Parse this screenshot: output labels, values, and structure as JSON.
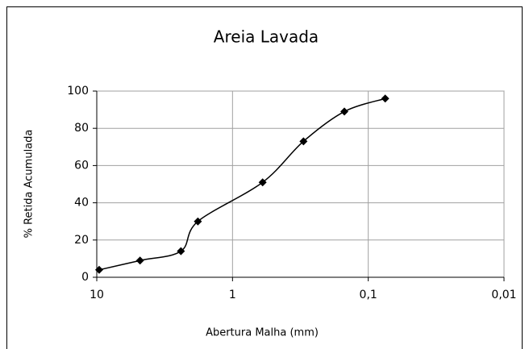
{
  "chart_data": {
    "type": "line",
    "title": "Areia Lavada",
    "xlabel": "Abertura Malha (mm)",
    "ylabel": "% Retida Acumulada",
    "x": [
      9.6,
      4.8,
      2.4,
      1.8,
      0.6,
      0.3,
      0.15,
      0.075
    ],
    "series": [
      {
        "name": "Areia Lavada",
        "color": "#000000",
        "values": [
          4,
          9,
          14,
          30,
          51,
          73,
          89,
          96
        ]
      }
    ],
    "xscale": "log",
    "xlim": [
      10,
      0.01
    ],
    "xticks": [
      {
        "value": 10,
        "label": "10"
      },
      {
        "value": 1,
        "label": "1"
      },
      {
        "value": 0.1,
        "label": "0,1"
      },
      {
        "value": 0.01,
        "label": "0,01"
      }
    ],
    "ylim": [
      0,
      100
    ],
    "yticks": [
      0,
      20,
      40,
      60,
      80,
      100
    ],
    "grid": true
  }
}
